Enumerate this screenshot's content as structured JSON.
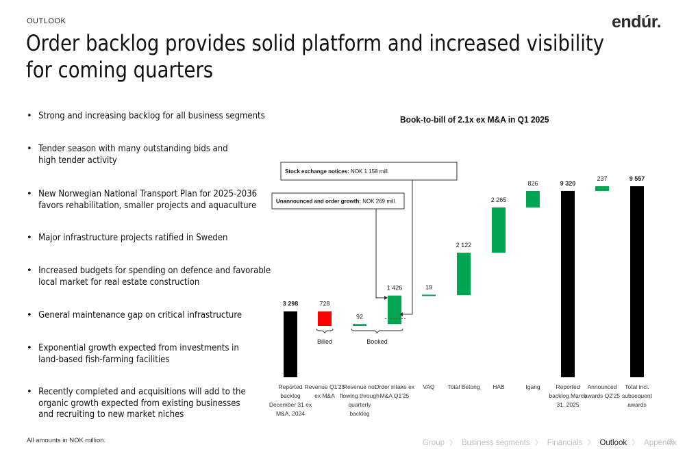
{
  "header": {
    "section": "OUTLOOK",
    "logo": "endúr.",
    "title": "Order backlog provides solid platform and increased visibility for coming quarters"
  },
  "bullets": [
    "Strong and increasing backlog for all business segments",
    "Tender season with many outstanding bids and high tender activity",
    "New Norwegian National Transport Plan for 2025-2036 favors rehabilitation, smaller projects and aquaculture",
    "Major infrastructure projects ratified in Sweden",
    "Increased budgets for spending on defence and favorable local market for real estate construction",
    "General maintenance gap on critical infrastructure",
    "Exponential growth expected from investments in land-based fish-farming facilities",
    "Recently completed and acquisitions will add to the organic growth expected from existing businesses and recruiting to new market niches"
  ],
  "footnote": "All amounts in NOK million.",
  "nav": {
    "items": [
      "Group",
      "Business segments",
      "Financials",
      "Outlook",
      "Appendix"
    ],
    "active": "Outlook",
    "page_number": "16"
  },
  "colors": {
    "total": "#000000",
    "increase": "#00a651",
    "decrease": "#ff0000",
    "annotation_line": "#333333"
  },
  "chart_data": {
    "type": "bar",
    "subtype": "waterfall",
    "title": "Book-to-bill of 2.1x ex M&A in Q1 2025",
    "categories": [
      "Reported backlog December 31 ex M&A, 2024",
      "Revenue Q1'25 ex M&A",
      "Revenue not flowing through quarterly backlog",
      "Order intake ex M&A Q1'25",
      "VAQ",
      "Total Betong",
      "HAB",
      "Igang",
      "Reported backlog March 31, 2025",
      "Announced awards Q2'25",
      "Total incl. subsequent awards"
    ],
    "tick_labels": [
      [
        "Reported",
        "backlog",
        "December 31 ex",
        "M&A, 2024"
      ],
      [
        "Revenue Q1'25",
        "ex M&A"
      ],
      [
        "Revenue not",
        "flowing through",
        "quarterly",
        "backlog"
      ],
      [
        "Order intake ex",
        "M&A Q1'25"
      ],
      [
        "VAQ"
      ],
      [
        "Total Betong"
      ],
      [
        "HAB"
      ],
      [
        "Igang"
      ],
      [
        "Reported",
        "backlog March",
        "31, 2025"
      ],
      [
        "Announced",
        "awards Q2'25"
      ],
      [
        "Total incl.",
        "subsequent",
        "awards"
      ]
    ],
    "values": [
      3298,
      -728,
      92,
      1426,
      19,
      2122,
      2265,
      826,
      9320,
      237,
      9557
    ],
    "value_labels": [
      "3 298",
      "728",
      "92",
      "1 426",
      "19",
      "2 122",
      "2 265",
      "826",
      "9 320",
      "237",
      "9 557"
    ],
    "kinds": [
      "total",
      "decrease",
      "increase",
      "increase",
      "increase",
      "increase",
      "increase",
      "increase",
      "total",
      "increase",
      "total"
    ],
    "brackets": [
      {
        "label": "Billed",
        "from": 1,
        "to": 1
      },
      {
        "label": "Booked",
        "from": 2,
        "to": 3
      }
    ],
    "annotations": [
      {
        "bold": "Stock exchange notices:",
        "text": " NOK 1 158 mill.",
        "value": 1158
      },
      {
        "bold": "Unannounced and order growth:",
        "text": " NOK 269 mill.",
        "value": 269
      }
    ],
    "ylim": [
      0,
      9557
    ],
    "grid": false,
    "legend": "none"
  }
}
